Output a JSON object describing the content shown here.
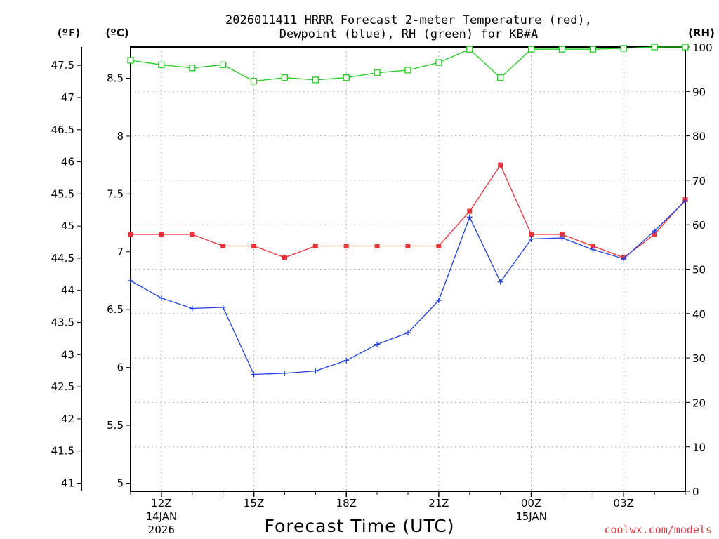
{
  "chart_data": {
    "type": "line",
    "title_line1": "2026011411 HRRR Forecast 2-meter Temperature (red),",
    "title_line2": "Dewpoint (blue), RH (green) for KB#A",
    "xlabel": "Forecast Time (UTC)",
    "credit": "coolwx.com/models",
    "units": {
      "f": "(ºF)",
      "c": "(ºC)",
      "rh": "(RH)"
    },
    "ylim_c": [
      4.93,
      8.77
    ],
    "ylim_rh": [
      0,
      100
    ],
    "y_ticks_c": [
      "5",
      "5.5",
      "6",
      "6.5",
      "7",
      "7.5",
      "8",
      "8.5"
    ],
    "y_ticks_f": [
      "41",
      "41.5",
      "42",
      "42.5",
      "43",
      "43.5",
      "44",
      "44.5",
      "45",
      "45.5",
      "46",
      "46.5",
      "47",
      "47.5"
    ],
    "y_ticks_rh": [
      "0",
      "10",
      "20",
      "30",
      "40",
      "50",
      "60",
      "70",
      "80",
      "90",
      "100"
    ],
    "x_hours": [
      11,
      12,
      13,
      14,
      15,
      16,
      17,
      18,
      19,
      20,
      21,
      22,
      23,
      24,
      25,
      26,
      27,
      28,
      29
    ],
    "x_ticks": [
      {
        "label": "12Z",
        "sub1": "14JAN",
        "sub2": "2026"
      },
      {
        "label": "15Z",
        "sub1": "",
        "sub2": ""
      },
      {
        "label": "18Z",
        "sub1": "",
        "sub2": ""
      },
      {
        "label": "21Z",
        "sub1": "",
        "sub2": ""
      },
      {
        "label": "00Z",
        "sub1": "15JAN",
        "sub2": ""
      },
      {
        "label": "03Z",
        "sub1": "",
        "sub2": ""
      }
    ],
    "series": [
      {
        "name": "Temperature",
        "color": "#e8343a",
        "marker": "filled-square",
        "values": [
          7.15,
          7.15,
          7.15,
          7.05,
          7.05,
          6.95,
          7.05,
          7.05,
          7.05,
          7.05,
          7.05,
          7.35,
          7.75,
          7.15,
          7.15,
          7.05,
          6.95,
          7.15,
          7.45
        ]
      },
      {
        "name": "Dewpoint",
        "color": "#1f3fe0",
        "marker": "plus",
        "values": [
          6.75,
          6.6,
          6.51,
          6.52,
          5.94,
          5.95,
          5.97,
          6.06,
          6.2,
          6.3,
          6.58,
          7.3,
          6.74,
          7.11,
          7.12,
          7.02,
          6.94,
          7.18,
          7.44
        ]
      },
      {
        "name": "RH",
        "color": "#22cc22",
        "marker": "open-square",
        "values": [
          97,
          96,
          95.3,
          96,
          92.3,
          93.1,
          92.6,
          93.1,
          94.2,
          94.8,
          96.5,
          99.5,
          93.1,
          99.5,
          99.5,
          99.5,
          99.7,
          100,
          100
        ]
      }
    ]
  }
}
